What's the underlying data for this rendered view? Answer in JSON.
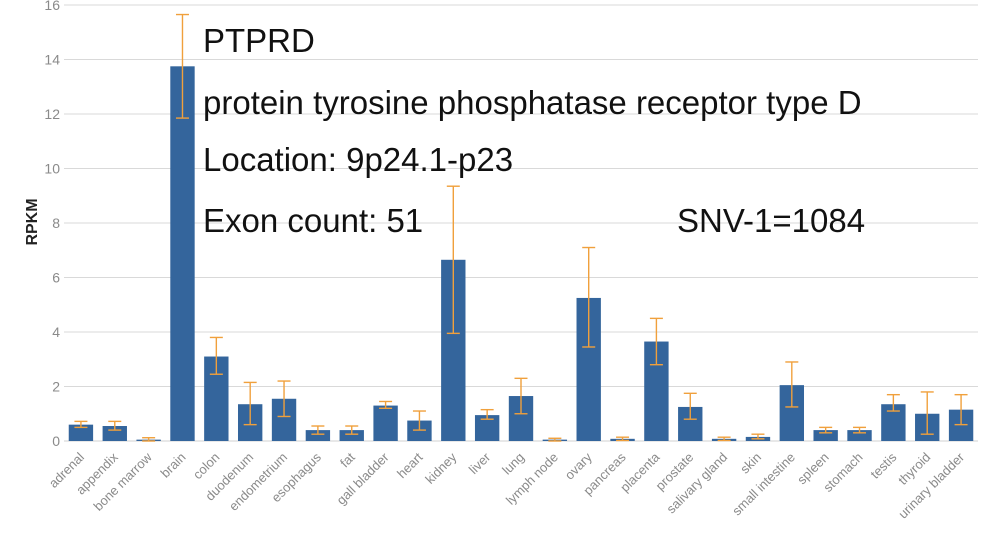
{
  "chart_data": {
    "type": "bar",
    "ylabel": "RPKM",
    "xlabel": "",
    "ylim": [
      0,
      16
    ],
    "yticks": [
      0,
      2,
      4,
      6,
      8,
      10,
      12,
      14,
      16
    ],
    "grid": true,
    "categories": [
      "adrenal",
      "appendix",
      "bone marrow",
      "brain",
      "colon",
      "duodenum",
      "endometrium",
      "esophagus",
      "fat",
      "gall bladder",
      "heart",
      "kidney",
      "liver",
      "lung",
      "lymph node",
      "ovary",
      "pancreas",
      "placenta",
      "prostate",
      "salivary gland",
      "skin",
      "small intestine",
      "spleen",
      "stomach",
      "testis",
      "thyroid",
      "urinary bladder"
    ],
    "values": [
      0.6,
      0.55,
      0.05,
      13.75,
      3.1,
      1.35,
      1.55,
      0.4,
      0.4,
      1.3,
      0.75,
      6.65,
      0.95,
      1.65,
      0.05,
      5.25,
      0.08,
      3.65,
      1.25,
      0.08,
      0.15,
      2.05,
      0.4,
      0.4,
      1.35,
      1.0,
      1.15
    ],
    "error_low": [
      0.5,
      0.4,
      0.0,
      11.85,
      2.45,
      0.6,
      0.9,
      0.25,
      0.25,
      1.2,
      0.4,
      3.95,
      0.8,
      1.0,
      0.0,
      3.45,
      0.02,
      2.8,
      0.8,
      0.02,
      0.08,
      1.25,
      0.3,
      0.3,
      1.1,
      0.25,
      0.6
    ],
    "error_high": [
      0.72,
      0.72,
      0.12,
      15.65,
      3.8,
      2.15,
      2.2,
      0.55,
      0.55,
      1.45,
      1.1,
      9.35,
      1.15,
      2.3,
      0.1,
      7.1,
      0.14,
      4.5,
      1.75,
      0.14,
      0.25,
      2.9,
      0.5,
      0.5,
      1.7,
      1.8,
      1.7
    ],
    "bar_color": "#34659c",
    "error_color": "#f0a03c",
    "grid_color": "#d9d9d9"
  },
  "overlay": {
    "gene": "PTPRD",
    "name": "protein tyrosine phosphatase receptor type D",
    "location": "Location: 9p24.1-p23",
    "exons": "Exon count: 51",
    "snv": "SNV-1=1084"
  }
}
